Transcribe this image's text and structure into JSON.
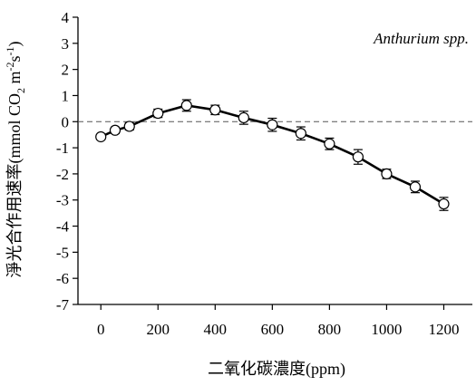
{
  "chart_data": {
    "type": "line",
    "title": "",
    "xlabel": "二氧化碳濃度(ppm)",
    "ylabel": {
      "prefix": "淨光合作用速率(mmol CO",
      "sub1": "2",
      "mid": " m",
      "sup1": "-2",
      "s": "s",
      "sup2": "-1",
      "suffix": ")"
    },
    "annotation": "Anthurium spp.",
    "xlim": [
      -80,
      1300
    ],
    "ylim": [
      -7,
      4
    ],
    "xticks": [
      0,
      200,
      400,
      600,
      800,
      1000,
      1200
    ],
    "xtick_labels": [
      "0",
      "200",
      "400",
      "600",
      "800",
      "1000",
      "1200"
    ],
    "yticks": [
      4,
      3,
      2,
      1,
      0,
      -1,
      -2,
      -3,
      -4,
      -5,
      -6,
      -7
    ],
    "ytick_labels": [
      "4",
      "3",
      "2",
      "1",
      "0",
      "-1",
      "-2",
      "-3",
      "-4",
      "-5",
      "-6",
      "-7"
    ],
    "reference_line": {
      "y": 0,
      "style": "dashed"
    },
    "grid": false,
    "legend": "none",
    "series": [
      {
        "x": [
          0,
          50,
          100,
          200,
          300,
          400,
          500,
          600,
          700,
          800,
          900,
          1000,
          1100,
          1200
        ],
        "y": [
          -0.58,
          -0.33,
          -0.18,
          0.32,
          0.62,
          0.45,
          0.15,
          -0.12,
          -0.45,
          -0.85,
          -1.35,
          -2.0,
          -2.5,
          -3.15
        ],
        "err": [
          0.06,
          0.12,
          0.14,
          0.16,
          0.22,
          0.18,
          0.25,
          0.25,
          0.25,
          0.22,
          0.28,
          0.18,
          0.22,
          0.25
        ],
        "color": "#000000",
        "marker": "open-circle"
      }
    ]
  }
}
